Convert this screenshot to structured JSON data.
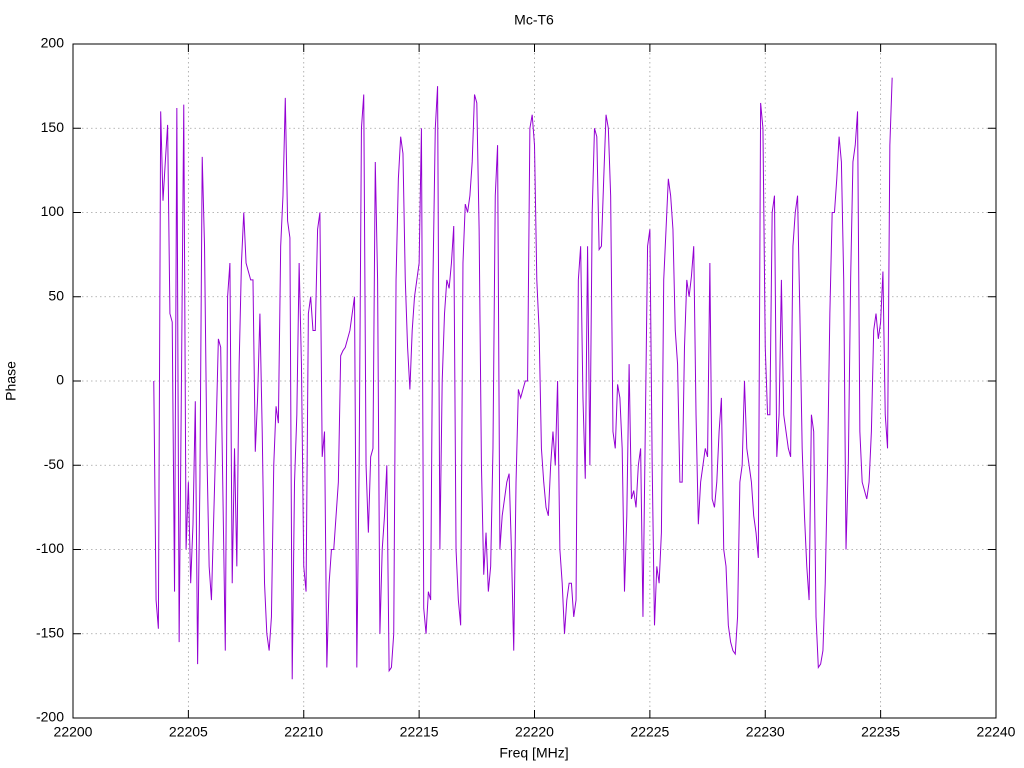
{
  "chart_data": {
    "type": "line",
    "title": "Mc-T6",
    "x_label": "Freq [MHz]",
    "y_label": "Phase",
    "color": "#9400d3",
    "grid": true,
    "xlim": [
      22200,
      22240
    ],
    "xticks": [
      22200,
      22205,
      22210,
      22215,
      22220,
      22225,
      22230,
      22235,
      22240
    ],
    "ylim": [
      -200,
      200
    ],
    "yticks": [
      -200,
      -150,
      -100,
      -50,
      0,
      50,
      100,
      150,
      200
    ],
    "x": [
      22203.5,
      22203.6,
      22203.7,
      22203.8,
      22203.9,
      22204,
      22204.1,
      22204.2,
      22204.3,
      22204.4,
      22204.5,
      22204.6,
      22204.7,
      22204.8,
      22204.9,
      22205,
      22205.1,
      22205.2,
      22205.3,
      22205.4,
      22205.5,
      22205.6,
      22205.7,
      22205.8,
      22205.9,
      22206,
      22206.1,
      22206.2,
      22206.3,
      22206.4,
      22206.5,
      22206.6,
      22206.7,
      22206.8,
      22206.9,
      22207,
      22207.1,
      22207.2,
      22207.3,
      22207.4,
      22207.5,
      22207.6,
      22207.7,
      22207.8,
      22207.9,
      22208,
      22208.1,
      22208.2,
      22208.3,
      22208.4,
      22208.5,
      22208.6,
      22208.7,
      22208.8,
      22208.9,
      22209,
      22209.1,
      22209.2,
      22209.3,
      22209.4,
      22209.5,
      22209.6,
      22209.7,
      22209.8,
      22209.9,
      22210,
      22210.1,
      22210.2,
      22210.3,
      22210.4,
      22210.5,
      22210.6,
      22210.7,
      22210.8,
      22210.9,
      22211,
      22211.1,
      22211.2,
      22211.3,
      22211.4,
      22211.5,
      22211.6,
      22211.7,
      22211.8,
      22211.9,
      22212,
      22212.1,
      22212.2,
      22212.3,
      22212.4,
      22212.5,
      22212.6,
      22212.7,
      22212.8,
      22212.9,
      22213,
      22213.1,
      22213.2,
      22213.3,
      22213.4,
      22213.5,
      22213.6,
      22213.7,
      22213.8,
      22213.9,
      22214,
      22214.1,
      22214.2,
      22214.3,
      22214.4,
      22214.5,
      22214.6,
      22214.7,
      22214.8,
      22214.9,
      22215,
      22215.1,
      22215.2,
      22215.3,
      22215.4,
      22215.5,
      22215.6,
      22215.7,
      22215.8,
      22215.9,
      22216,
      22216.1,
      22216.2,
      22216.3,
      22216.4,
      22216.5,
      22216.6,
      22216.7,
      22216.8,
      22216.9,
      22217,
      22217.1,
      22217.2,
      22217.3,
      22217.4,
      22217.5,
      22217.6,
      22217.7,
      22217.8,
      22217.9,
      22218,
      22218.1,
      22218.2,
      22218.3,
      22218.4,
      22218.5,
      22218.6,
      22218.7,
      22218.8,
      22218.9,
      22219,
      22219.1,
      22219.2,
      22219.3,
      22219.4,
      22219.5,
      22219.6,
      22219.7,
      22219.8,
      22219.9,
      22220,
      22220.1,
      22220.2,
      22220.3,
      22220.4,
      22220.5,
      22220.6,
      22220.7,
      22220.8,
      22220.9,
      22221,
      22221.1,
      22221.2,
      22221.3,
      22221.4,
      22221.5,
      22221.6,
      22221.7,
      22221.8,
      22221.9,
      22222,
      22222.1,
      22222.2,
      22222.3,
      22222.4,
      22222.5,
      22222.6,
      22222.7,
      22222.8,
      22222.9,
      22223,
      22223.1,
      22223.2,
      22223.3,
      22223.4,
      22223.5,
      22223.6,
      22223.7,
      22223.8,
      22223.9,
      22224,
      22224.1,
      22224.2,
      22224.3,
      22224.4,
      22224.5,
      22224.6,
      22224.7,
      22224.8,
      22224.9,
      22225,
      22225.1,
      22225.2,
      22225.3,
      22225.4,
      22225.5,
      22225.6,
      22225.7,
      22225.8,
      22225.9,
      22226,
      22226.1,
      22226.2,
      22226.3,
      22226.4,
      22226.5,
      22226.6,
      22226.7,
      22226.8,
      22226.9,
      22227,
      22227.1,
      22227.2,
      22227.3,
      22227.4,
      22227.5,
      22227.6,
      22227.7,
      22227.8,
      22227.9,
      22228,
      22228.1,
      22228.2,
      22228.3,
      22228.4,
      22228.5,
      22228.6,
      22228.7,
      22228.8,
      22228.9,
      22229,
      22229.1,
      22229.2,
      22229.3,
      22229.4,
      22229.5,
      22229.6,
      22229.7,
      22229.8,
      22229.9,
      22230,
      22230.1,
      22230.2,
      22230.3,
      22230.4,
      22230.5,
      22230.6,
      22230.7,
      22230.8,
      22230.9,
      22231,
      22231.1,
      22231.2,
      22231.3,
      22231.4,
      22231.5,
      22231.6,
      22231.7,
      22231.8,
      22231.9,
      22232,
      22232.1,
      22232.2,
      22232.3,
      22232.4,
      22232.5,
      22232.6,
      22232.7,
      22232.8,
      22232.9,
      22233,
      22233.1,
      22233.2,
      22233.3,
      22233.4,
      22233.5,
      22233.6,
      22233.7,
      22233.8,
      22233.9,
      22234,
      22234.1,
      22234.2,
      22234.3,
      22234.4,
      22234.5,
      22234.6,
      22234.7,
      22234.8,
      22234.9,
      22235,
      22235.1,
      22235.2,
      22235.3,
      22235.4,
      22235.5
    ],
    "values": [
      0,
      -130,
      -147,
      160,
      107,
      130,
      152,
      40,
      35,
      -125,
      162,
      -155,
      0,
      164,
      -100,
      -60,
      -120,
      -85,
      -12,
      -168,
      -60,
      133,
      80,
      -40,
      -110,
      -130,
      -80,
      -30,
      25,
      20,
      -70,
      -160,
      50,
      70,
      -120,
      -40,
      -110,
      10,
      70,
      100,
      70,
      65,
      60,
      60,
      -42,
      -10,
      40,
      -30,
      -120,
      -150,
      -160,
      -140,
      -50,
      -15,
      -25,
      80,
      110,
      168,
      95,
      85,
      -177,
      -60,
      -20,
      70,
      10,
      -110,
      -125,
      40,
      50,
      30,
      30,
      90,
      100,
      -45,
      -30,
      -170,
      -120,
      -100,
      -100,
      -80,
      -60,
      15,
      18,
      20,
      25,
      30,
      40,
      50,
      -170,
      -50,
      150,
      170,
      -50,
      -90,
      -45,
      -40,
      130,
      60,
      -150,
      -100,
      -80,
      -50,
      -172,
      -170,
      -150,
      60,
      120,
      145,
      135,
      60,
      20,
      -5,
      30,
      50,
      60,
      70,
      150,
      -135,
      -150,
      -125,
      -130,
      60,
      150,
      175,
      -100,
      0,
      40,
      60,
      55,
      70,
      92,
      -100,
      -130,
      -145,
      70,
      105,
      100,
      110,
      130,
      170,
      165,
      90,
      -50,
      -115,
      -90,
      -125,
      -110,
      -40,
      110,
      140,
      -100,
      -80,
      -70,
      -60,
      -55,
      -100,
      -160,
      -60,
      -5,
      -10,
      -5,
      0,
      0,
      150,
      158,
      140,
      60,
      30,
      -40,
      -60,
      -75,
      -80,
      -50,
      -30,
      -50,
      0,
      -100,
      -120,
      -150,
      -130,
      -120,
      -120,
      -140,
      -130,
      60,
      80,
      -10,
      -58,
      80,
      -50,
      100,
      150,
      145,
      78,
      80,
      120,
      158,
      150,
      110,
      -30,
      -40,
      -2,
      -10,
      -40,
      -125,
      -80,
      10,
      -70,
      -65,
      -75,
      -50,
      -40,
      -140,
      -30,
      80,
      90,
      -50,
      -145,
      -110,
      -120,
      -90,
      60,
      90,
      120,
      110,
      90,
      30,
      10,
      -60,
      -60,
      20,
      60,
      50,
      62,
      80,
      -20,
      -85,
      -60,
      -50,
      -40,
      -45,
      70,
      -70,
      -75,
      -60,
      -30,
      -10,
      -100,
      -110,
      -145,
      -155,
      -160,
      -162,
      -140,
      -60,
      -50,
      0,
      -40,
      -50,
      -60,
      -80,
      -90,
      -105,
      165,
      150,
      20,
      -20,
      -20,
      100,
      110,
      -45,
      -20,
      60,
      -20,
      -30,
      -40,
      -45,
      80,
      100,
      110,
      40,
      -40,
      -80,
      -110,
      -130,
      -20,
      -30,
      -140,
      -170,
      -168,
      -160,
      -120,
      -50,
      40,
      100,
      100,
      120,
      145,
      130,
      60,
      -100,
      -50,
      60,
      130,
      140,
      160,
      -30,
      -60,
      -65,
      -70,
      -60,
      -30,
      30,
      40,
      25,
      35,
      65,
      -20,
      -40,
      140,
      180
    ]
  }
}
